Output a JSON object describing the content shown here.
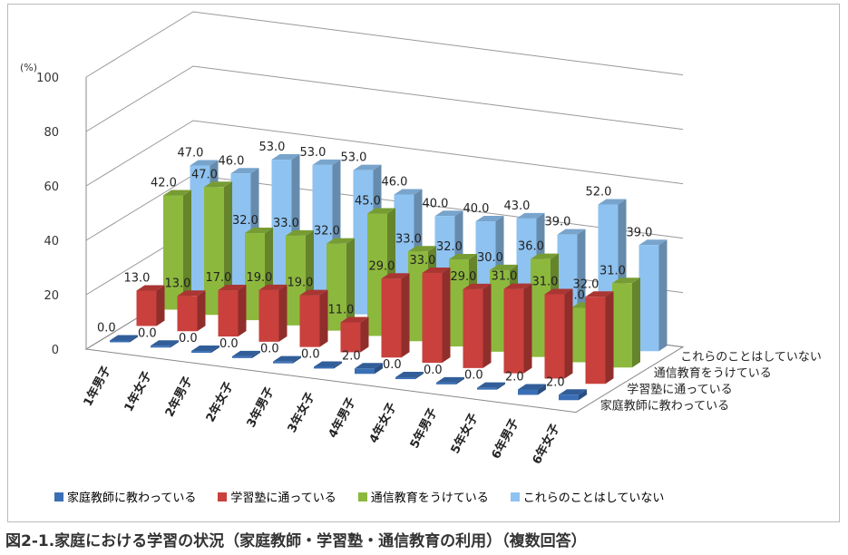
{
  "chart_data": {
    "type": "bar",
    "variant": "3d-clustered-depth",
    "unit_label": "(%)",
    "ylim": [
      0,
      100
    ],
    "yticks": [
      0,
      20,
      40,
      60,
      80,
      100
    ],
    "grid": true,
    "legend_position": "bottom",
    "categories": [
      "1年男子",
      "1年女子",
      "2年男子",
      "2年女子",
      "3年男子",
      "3年女子",
      "4年男子",
      "4年女子",
      "5年男子",
      "5年女子",
      "6年男子",
      "6年女子"
    ],
    "series": [
      {
        "name": "家庭教師に教わっている",
        "color": "#3a6fb5",
        "values": [
          0,
          0,
          0,
          0,
          0,
          0,
          2,
          0,
          0,
          0,
          2,
          2
        ]
      },
      {
        "name": "学習塾に通っている",
        "color": "#c9403c",
        "values": [
          13,
          13,
          17,
          19,
          19,
          11,
          29,
          33,
          29,
          31,
          31,
          32
        ]
      },
      {
        "name": "通信教育をうけている",
        "color": "#8db83e",
        "values": [
          42,
          47,
          32,
          33,
          32,
          45,
          33,
          32,
          30,
          36,
          20,
          31
        ]
      },
      {
        "name": "これらのことはしていない",
        "color": "#8ec2f0",
        "values": [
          47,
          46,
          53,
          53,
          53,
          46,
          40,
          40,
          43,
          39,
          52,
          39
        ]
      }
    ]
  },
  "caption": "図2-1.家庭における学習の状況（家庭教師・学習塾・通信教育の利用）（複数回答）"
}
